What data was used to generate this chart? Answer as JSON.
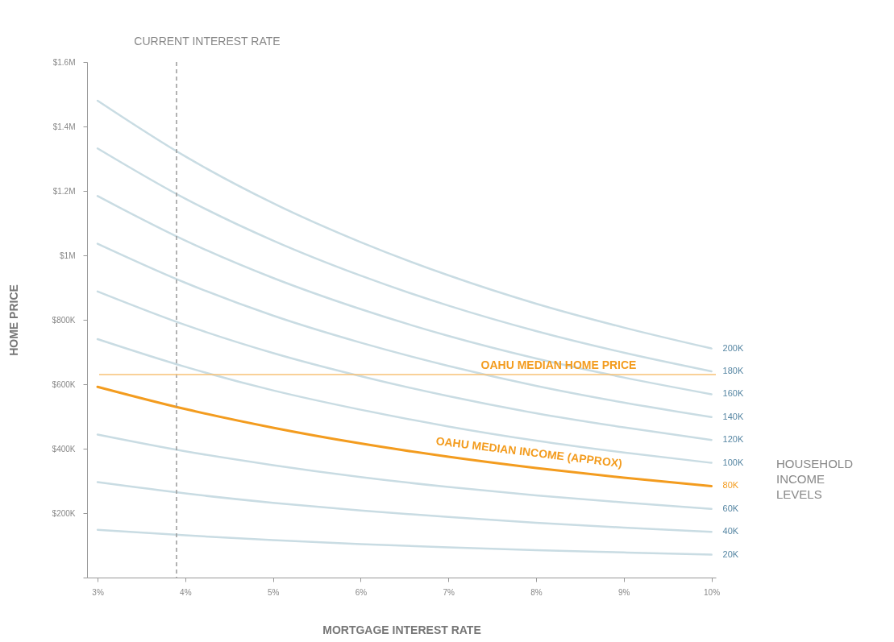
{
  "chart_data": {
    "type": "line",
    "xlabel": "MORTGAGE INTEREST RATE",
    "ylabel": "HOME PRICE",
    "x": [
      3,
      4,
      5,
      6,
      7,
      8,
      9,
      10
    ],
    "series": [
      {
        "name": "20K",
        "color": "#c9dce3",
        "values": [
          148000,
          131000,
          116000,
          104000,
          94000,
          85000,
          78000,
          71000
        ]
      },
      {
        "name": "40K",
        "color": "#c9dce3",
        "values": [
          296000,
          261000,
          232000,
          208000,
          188000,
          170000,
          155000,
          142000
        ]
      },
      {
        "name": "60K",
        "color": "#c9dce3",
        "values": [
          444000,
          392000,
          349000,
          312000,
          281000,
          255000,
          233000,
          213000
        ]
      },
      {
        "name": "80K",
        "color": "#f39c1f",
        "values": [
          592000,
          523000,
          465000,
          416000,
          375000,
          340000,
          310000,
          284000
        ]
      },
      {
        "name": "100K",
        "color": "#c9dce3",
        "values": [
          740000,
          654000,
          581000,
          521000,
          469000,
          425000,
          388000,
          356000
        ]
      },
      {
        "name": "120K",
        "color": "#c9dce3",
        "values": [
          888000,
          784000,
          697000,
          625000,
          563000,
          510000,
          466000,
          427000
        ]
      },
      {
        "name": "140K",
        "color": "#c9dce3",
        "values": [
          1036000,
          915000,
          813000,
          729000,
          657000,
          595000,
          543000,
          498000
        ]
      },
      {
        "name": "160K",
        "color": "#c9dce3",
        "values": [
          1184000,
          1046000,
          930000,
          833000,
          750000,
          680000,
          621000,
          569000
        ]
      },
      {
        "name": "180K",
        "color": "#c9dce3",
        "values": [
          1332000,
          1176000,
          1046000,
          937000,
          844000,
          765000,
          698000,
          640000
        ]
      },
      {
        "name": "200K",
        "color": "#c9dce3",
        "values": [
          1480000,
          1307000,
          1162000,
          1041000,
          938000,
          850000,
          776000,
          711000
        ]
      }
    ],
    "xlim": [
      2.88,
      10.05
    ],
    "ylim": [
      0,
      1600000
    ],
    "xticks": [
      {
        "value": 3,
        "label": "3%"
      },
      {
        "value": 4,
        "label": "4%"
      },
      {
        "value": 5,
        "label": "5%"
      },
      {
        "value": 6,
        "label": "6%"
      },
      {
        "value": 7,
        "label": "7%"
      },
      {
        "value": 8,
        "label": "8%"
      },
      {
        "value": 9,
        "label": "9%"
      },
      {
        "value": 10,
        "label": "10%"
      }
    ],
    "yticks": [
      {
        "value": 0,
        "label": null
      },
      {
        "value": 200000,
        "label": "$200K"
      },
      {
        "value": 400000,
        "label": "$400K"
      },
      {
        "value": 600000,
        "label": "$600K"
      },
      {
        "value": 800000,
        "label": "$800K"
      },
      {
        "value": 1000000,
        "label": "$1M"
      },
      {
        "value": 1200000,
        "label": "$1.2M"
      },
      {
        "value": 1400000,
        "label": "$1.4M"
      },
      {
        "value": 1600000,
        "label": "$1.6M"
      }
    ],
    "ref_lines": [
      {
        "axis": "x",
        "value": 3.9,
        "label": "CURRENT INTEREST RATE",
        "color": "#999999",
        "line_style": "dashed"
      },
      {
        "axis": "y",
        "value": 630000,
        "label": "OAHU MEDIAN HOME PRICE",
        "color": "#f7c276",
        "line_style": "solid"
      }
    ],
    "annotations": [
      {
        "text": "OAHU MEDIAN INCOME (APPROX)",
        "x": 7.9,
        "y": 345000
      },
      "HOUSEHOLD INCOME LEVELS"
    ],
    "grid": false,
    "marker": "none",
    "line_style": "solid"
  }
}
